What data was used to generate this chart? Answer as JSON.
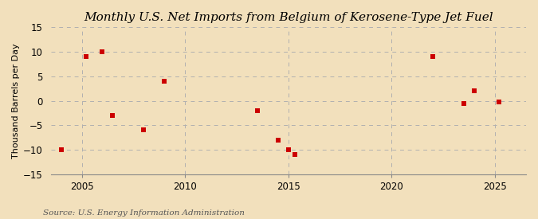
{
  "title": "Monthly U.S. Net Imports from Belgium of Kerosene-Type Jet Fuel",
  "ylabel": "Thousand Barrels per Day",
  "source": "Source: U.S. Energy Information Administration",
  "background_color": "#f2e0bc",
  "plot_background_color": "#f2e0bc",
  "ylim": [
    -15,
    15
  ],
  "yticks": [
    -15,
    -10,
    -5,
    0,
    5,
    10,
    15
  ],
  "xlim": [
    2003.5,
    2026.5
  ],
  "xticks": [
    2005,
    2010,
    2015,
    2020,
    2025
  ],
  "data_x": [
    2004.0,
    2005.2,
    2006.0,
    2006.5,
    2008.0,
    2009.0,
    2013.5,
    2014.5,
    2015.0,
    2015.3,
    2022.0,
    2023.5,
    2024.0,
    2025.2
  ],
  "data_y": [
    -10,
    9,
    10,
    -3,
    -6,
    4,
    -2,
    -8,
    -10,
    -11,
    9,
    -0.5,
    2,
    -0.2
  ],
  "marker_color": "#cc0000",
  "marker_size": 18,
  "grid_color": "#b0b0b0",
  "title_fontsize": 11,
  "label_fontsize": 8,
  "tick_fontsize": 8.5,
  "source_fontsize": 7.5
}
